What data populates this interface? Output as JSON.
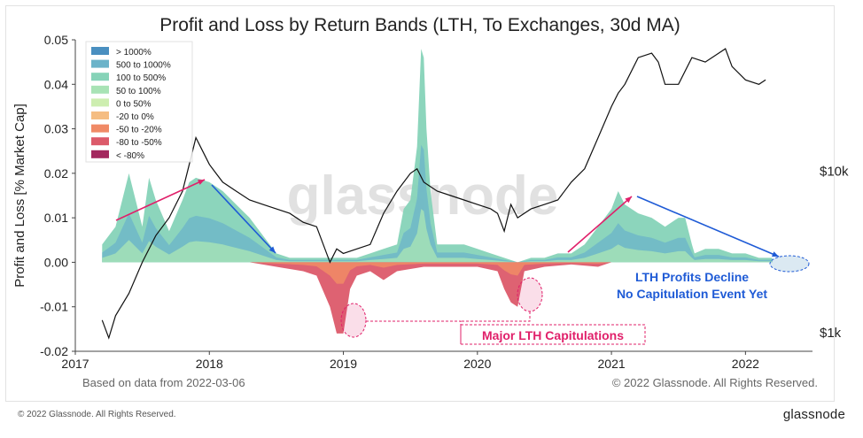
{
  "chart_data": {
    "type": "area",
    "title": "Profit and Loss by Return Bands (LTH, To Exchanges, 30d MA)",
    "ylabel": "Profit and Loss [% Market Cap]",
    "ylim": [
      -0.02,
      0.05
    ],
    "yticks": [
      "0.05",
      "0.04",
      "0.03",
      "0.02",
      "0.01",
      "0.00",
      "-0.01",
      "-0.02"
    ],
    "ytick_values": [
      0.05,
      0.04,
      0.03,
      0.02,
      0.01,
      0.0,
      -0.01,
      -0.02
    ],
    "xlim": [
      2017.0,
      2022.5
    ],
    "xticks": [
      "2017",
      "2018",
      "2019",
      "2020",
      "2021",
      "2022"
    ],
    "xtick_values": [
      2017,
      2018,
      2019,
      2020,
      2021,
      2022
    ],
    "y2ticks": [
      "$10k",
      "$1k"
    ],
    "legend_position": "top-left",
    "legend": [
      {
        "label": "> 1000%",
        "color": "#4a8fc0"
      },
      {
        "label": "500 to 1000%",
        "color": "#6bb3c9"
      },
      {
        "label": "100 to 500%",
        "color": "#86d3b8"
      },
      {
        "label": "50 to 100%",
        "color": "#a8e3b5"
      },
      {
        "label": "0 to 50%",
        "color": "#cdeeb0"
      },
      {
        "label": "-20 to 0%",
        "color": "#f5bd82"
      },
      {
        "label": "-50 to -20%",
        "color": "#f08a66"
      },
      {
        "label": "-80 to -50%",
        "color": "#dc5a6a"
      },
      {
        "label": "< -80%",
        "color": "#a3285e"
      }
    ],
    "positive_total": {
      "x": [
        2017.2,
        2017.3,
        2017.4,
        2017.5,
        2017.55,
        2017.6,
        2017.7,
        2017.8,
        2017.85,
        2017.9,
        2018.0,
        2018.1,
        2018.2,
        2018.3,
        2018.4,
        2018.5,
        2018.6,
        2018.7,
        2018.8,
        2018.9,
        2019.0,
        2019.1,
        2019.2,
        2019.3,
        2019.4,
        2019.45,
        2019.5,
        2019.55,
        2019.58,
        2019.6,
        2019.62,
        2019.65,
        2019.7,
        2019.8,
        2019.9,
        2020.0,
        2020.1,
        2020.2,
        2020.3,
        2020.4,
        2020.5,
        2020.6,
        2020.7,
        2020.8,
        2020.9,
        2021.0,
        2021.05,
        2021.1,
        2021.2,
        2021.3,
        2021.4,
        2021.5,
        2021.55,
        2021.6,
        2021.62,
        2021.7,
        2021.8,
        2021.9,
        2022.0,
        2022.1,
        2022.2
      ],
      "y": [
        0.004,
        0.008,
        0.02,
        0.008,
        0.019,
        0.014,
        0.007,
        0.014,
        0.018,
        0.019,
        0.018,
        0.016,
        0.013,
        0.01,
        0.006,
        0.002,
        0.001,
        0.001,
        0.001,
        0.001,
        0.001,
        0.001,
        0.002,
        0.003,
        0.004,
        0.012,
        0.014,
        0.026,
        0.048,
        0.046,
        0.03,
        0.016,
        0.004,
        0.004,
        0.004,
        0.003,
        0.002,
        0.001,
        0.0,
        0.001,
        0.001,
        0.002,
        0.002,
        0.004,
        0.008,
        0.012,
        0.016,
        0.013,
        0.011,
        0.01,
        0.008,
        0.01,
        0.01,
        0.004,
        0.002,
        0.003,
        0.003,
        0.002,
        0.002,
        0.001,
        0.001
      ]
    },
    "negative_total": {
      "x": [
        2017.2,
        2018.3,
        2018.5,
        2018.7,
        2018.8,
        2018.9,
        2018.95,
        2019.0,
        2019.05,
        2019.1,
        2019.2,
        2019.3,
        2019.4,
        2019.6,
        2019.8,
        2020.0,
        2020.15,
        2020.2,
        2020.25,
        2020.3,
        2020.35,
        2020.5,
        2020.7,
        2020.9,
        2021.0,
        2021.5,
        2022.0,
        2022.2
      ],
      "y": [
        0.0,
        0.0,
        -0.001,
        -0.002,
        -0.003,
        -0.01,
        -0.016,
        -0.016,
        -0.006,
        -0.003,
        -0.002,
        -0.004,
        -0.002,
        -0.001,
        -0.001,
        -0.001,
        -0.002,
        -0.006,
        -0.009,
        -0.01,
        -0.002,
        -0.001,
        -0.0005,
        -0.001,
        0.0,
        0.0,
        0.0,
        0.0
      ]
    },
    "price_line_label": "",
    "price": {
      "x": [
        2017.2,
        2017.25,
        2017.3,
        2017.4,
        2017.5,
        2017.6,
        2017.7,
        2017.8,
        2017.85,
        2017.9,
        2017.95,
        2018.0,
        2018.05,
        2018.1,
        2018.2,
        2018.3,
        2018.4,
        2018.5,
        2018.6,
        2018.7,
        2018.8,
        2018.9,
        2018.95,
        2019.0,
        2019.1,
        2019.2,
        2019.3,
        2019.4,
        2019.5,
        2019.55,
        2019.6,
        2019.7,
        2019.8,
        2019.9,
        2020.0,
        2020.1,
        2020.15,
        2020.2,
        2020.25,
        2020.3,
        2020.4,
        2020.5,
        2020.6,
        2020.7,
        2020.8,
        2020.9,
        2021.0,
        2021.05,
        2021.1,
        2021.2,
        2021.3,
        2021.35,
        2021.4,
        2021.5,
        2021.6,
        2021.7,
        2021.8,
        2021.85,
        2021.9,
        2022.0,
        2022.1,
        2022.15
      ],
      "y": [
        -0.013,
        -0.017,
        -0.012,
        -0.007,
        0.0,
        0.006,
        0.01,
        0.016,
        0.022,
        0.028,
        0.025,
        0.022,
        0.02,
        0.018,
        0.016,
        0.014,
        0.013,
        0.012,
        0.011,
        0.009,
        0.008,
        0.0,
        0.003,
        0.002,
        0.003,
        0.004,
        0.011,
        0.016,
        0.02,
        0.021,
        0.018,
        0.016,
        0.015,
        0.014,
        0.013,
        0.012,
        0.011,
        0.007,
        0.013,
        0.01,
        0.012,
        0.013,
        0.014,
        0.018,
        0.021,
        0.028,
        0.035,
        0.038,
        0.04,
        0.046,
        0.047,
        0.045,
        0.04,
        0.04,
        0.046,
        0.045,
        0.047,
        0.048,
        0.044,
        0.041,
        0.04,
        0.041
      ]
    },
    "annotations": [
      {
        "text": "LTH Profits Decline",
        "color": "#1f5bd6"
      },
      {
        "text": "No Capitulation Event Yet",
        "color": "#1f5bd6"
      },
      {
        "text": "Major LTH Capitulations",
        "color": "#e0206a"
      }
    ],
    "watermark": "glassnode",
    "source_note": "Based on data from 2022-03-06",
    "copyright_plot": "© 2022 Glassnode. All Rights Reserved."
  },
  "footer": {
    "copyright": "© 2022 Glassnode. All Rights Reserved.",
    "logo": "glassnode"
  }
}
